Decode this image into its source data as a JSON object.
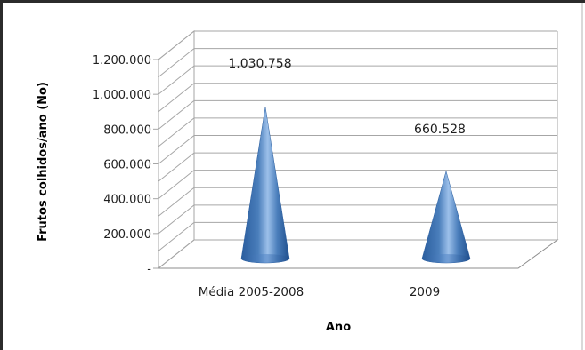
{
  "chart_data": {
    "type": "bar",
    "style": "3d-cone",
    "categories": [
      "Média 2005-2008",
      "2009"
    ],
    "values": [
      1030758,
      660528
    ],
    "data_labels": [
      "1.030.758",
      "660.528"
    ],
    "xlabel": "Ano",
    "ylabel": "Frutos colhidos/ano (No)",
    "ylim": [
      0,
      1200000
    ],
    "yticks": [
      0,
      200000,
      400000,
      600000,
      800000,
      1000000,
      1200000
    ],
    "ytick_labels": [
      "-",
      "200.000",
      "400.000",
      "600.000",
      "800.000",
      "1.000.000",
      "1.200.000"
    ],
    "grid": true,
    "legend": "none",
    "colors": {
      "cone": "#4a7ebb",
      "cone_light": "#9cc0ea",
      "cone_dark": "#1f4e8c",
      "grid": "#a6a6a6"
    }
  }
}
